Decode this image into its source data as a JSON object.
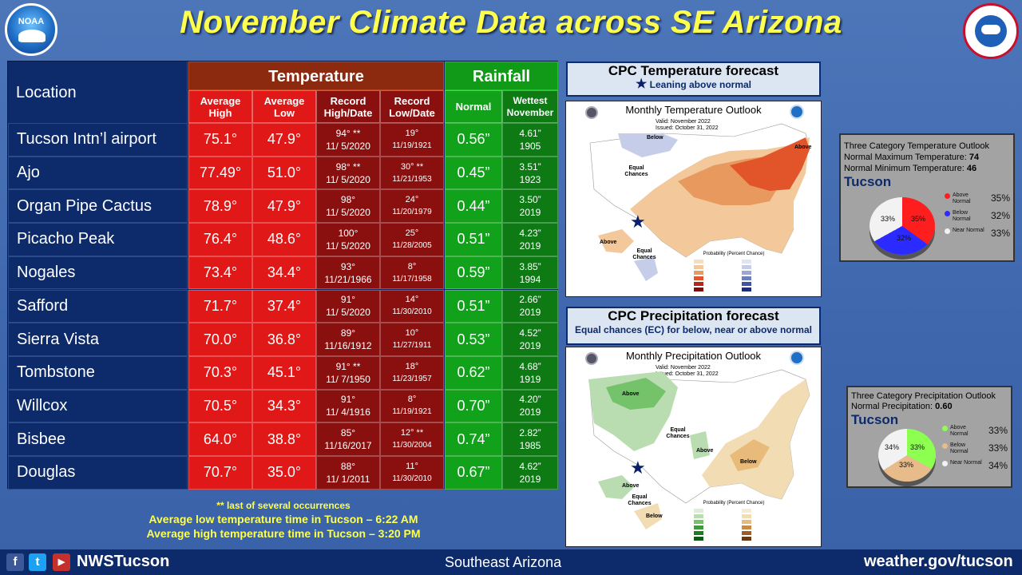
{
  "title": "November Climate Data across SE Arizona",
  "logos": {
    "noaa": "NOAA",
    "nws": "NATIONAL WEATHER SERVICE"
  },
  "table": {
    "location_header": "Location",
    "temperature_header": "Temperature",
    "rainfall_header": "Rainfall",
    "subheaders": {
      "avg_high": "Average High",
      "avg_low": "Average Low",
      "record_high": "Record High/Date",
      "record_low": "Record Low/Date",
      "normal": "Normal",
      "wettest": "Wettest November"
    },
    "rows": [
      {
        "location": "Tucson Intn’l airport",
        "avg_high": "75.1°",
        "avg_low": "47.9°",
        "rec_high": "94° **",
        "rec_high_date": "11/ 5/2020",
        "rec_low": "19°",
        "rec_low_date": "11/19/1921",
        "normal": "0.56”",
        "wettest": "4.61”",
        "wettest_year": "1905"
      },
      {
        "location": "Ajo",
        "avg_high": "77.49°",
        "avg_low": "51.0°",
        "rec_high": "98° **",
        "rec_high_date": "11/ 5/2020",
        "rec_low": "30° **",
        "rec_low_date": "11/21/1953",
        "normal": "0.45”",
        "wettest": "3.51”",
        "wettest_year": "1923"
      },
      {
        "location": "Organ Pipe Cactus",
        "avg_high": "78.9°",
        "avg_low": "47.9°",
        "rec_high": "98°",
        "rec_high_date": "11/ 5/2020",
        "rec_low": "24°",
        "rec_low_date": "11/20/1979",
        "normal": "0.44”",
        "wettest": "3.50”",
        "wettest_year": "2019"
      },
      {
        "location": "Picacho Peak",
        "avg_high": "76.4°",
        "avg_low": "48.6°",
        "rec_high": "100°",
        "rec_high_date": "11/ 5/2020",
        "rec_low": "25°",
        "rec_low_date": "11/28/2005",
        "normal": "0.51”",
        "wettest": "4.23”",
        "wettest_year": "2019"
      },
      {
        "location": "Nogales",
        "avg_high": "73.4°",
        "avg_low": "34.4°",
        "rec_high": "93°",
        "rec_high_date": "11/21/1966",
        "rec_low": "8°",
        "rec_low_date": "11/17/1958",
        "normal": "0.59”",
        "wettest": "3.85”",
        "wettest_year": "1994"
      },
      {
        "location": "Safford",
        "avg_high": "71.7°",
        "avg_low": "37.4°",
        "rec_high": "91°",
        "rec_high_date": "11/ 5/2020",
        "rec_low": "14°",
        "rec_low_date": "11/30/2010",
        "normal": "0.51”",
        "wettest": "2.66”",
        "wettest_year": "2019"
      },
      {
        "location": "Sierra Vista",
        "avg_high": "70.0°",
        "avg_low": "36.8°",
        "rec_high": "89°",
        "rec_high_date": "11/16/1912",
        "rec_low": "10°",
        "rec_low_date": "11/27/1911",
        "normal": "0.53”",
        "wettest": "4.52”",
        "wettest_year": "2019"
      },
      {
        "location": "Tombstone",
        "avg_high": "70.3°",
        "avg_low": "45.1°",
        "rec_high": "91° **",
        "rec_high_date": "11/ 7/1950",
        "rec_low": "18°",
        "rec_low_date": "11/23/1957",
        "normal": "0.62”",
        "wettest": "4.68”",
        "wettest_year": "1919"
      },
      {
        "location": "Willcox",
        "avg_high": "70.5°",
        "avg_low": "34.3°",
        "rec_high": "91°",
        "rec_high_date": "11/ 4/1916",
        "rec_low": "8°",
        "rec_low_date": "11/19/1921",
        "normal": "0.70”",
        "wettest": "4.20”",
        "wettest_year": "2019"
      },
      {
        "location": "Bisbee",
        "avg_high": "64.0°",
        "avg_low": "38.8°",
        "rec_high": "85°",
        "rec_high_date": "11/16/2017",
        "rec_low": "12° **",
        "rec_low_date": "11/30/2004",
        "normal": "0.74”",
        "wettest": "2.82”",
        "wettest_year": "1985"
      },
      {
        "location": "Douglas",
        "avg_high": "70.7°",
        "avg_low": "35.0°",
        "rec_high": "88°",
        "rec_high_date": "11/ 1/2011",
        "rec_low": "11°",
        "rec_low_date": "11/30/2010",
        "normal": "0.67”",
        "wettest": "4.62”",
        "wettest_year": "2019"
      }
    ]
  },
  "footnotes": {
    "note": "** last of several occurrences",
    "low_time": "Average low temperature time in Tucson – 6:22 AM",
    "high_time": "Average high temperature time in Tucson – 3:20 PM"
  },
  "temp_forecast": {
    "title": "CPC Temperature forecast",
    "subtitle": "Leaning above normal",
    "map_title": "Monthly Temperature Outlook",
    "valid": "Valid:  November 2022",
    "issued": "Issued:  October 31, 2022",
    "labels": {
      "below": "Below",
      "above": "Above",
      "equal": "Equal Chances",
      "above_ak": "Above",
      "equal_ak": "Equal Chances"
    }
  },
  "precip_forecast": {
    "title": "CPC Precipitation forecast",
    "subtitle": "Equal chances (EC) for below, near or above normal",
    "map_title": "Monthly Precipitation Outlook",
    "valid": "Valid:  November 2022",
    "issued": "Issued:  October 31, 2022",
    "labels": {
      "above": "Above",
      "equal": "Equal Chances",
      "above2": "Above",
      "below": "Below",
      "above_ak": "Above",
      "equal_ak": "Equal Chances",
      "below_ak": "Below"
    }
  },
  "temp_outlook": {
    "title": "Three Category Temperature Outlook",
    "max_label": "Normal Maximum Temperature:",
    "max_value": "74",
    "min_label": "Normal Minimum Temperature:",
    "min_value": "46",
    "city": "Tucson",
    "above": 35,
    "below": 32,
    "near": 33,
    "above_pct": "35%",
    "below_pct": "32%",
    "near_pct": "33%",
    "legend": {
      "above": "Above Normal",
      "below": "Below Normal",
      "near": "Near Normal"
    },
    "colors": {
      "above": "#ff1e1e",
      "below": "#2b2bff",
      "near": "#f2f2f2"
    }
  },
  "precip_outlook": {
    "title": "Three Category Precipitation Outlook",
    "normal_label": "Normal Precipitation:",
    "normal_value": "0.60",
    "city": "Tucson",
    "above": 33,
    "below": 33,
    "near": 34,
    "above_pct": "33%",
    "below_pct": "33%",
    "near_pct": "34%",
    "legend": {
      "above": "Above Normal",
      "below": "Below Normal",
      "near": "Near Normal"
    },
    "colors": {
      "above": "#8cff50",
      "below": "#e8bb8a",
      "near": "#f2f2f2"
    }
  },
  "footer": {
    "social_f": "f",
    "social_t": "t",
    "social_y": "▶",
    "handle": "NWSTucson",
    "region": "Southeast Arizona",
    "site": "weather.gov/tucson"
  }
}
